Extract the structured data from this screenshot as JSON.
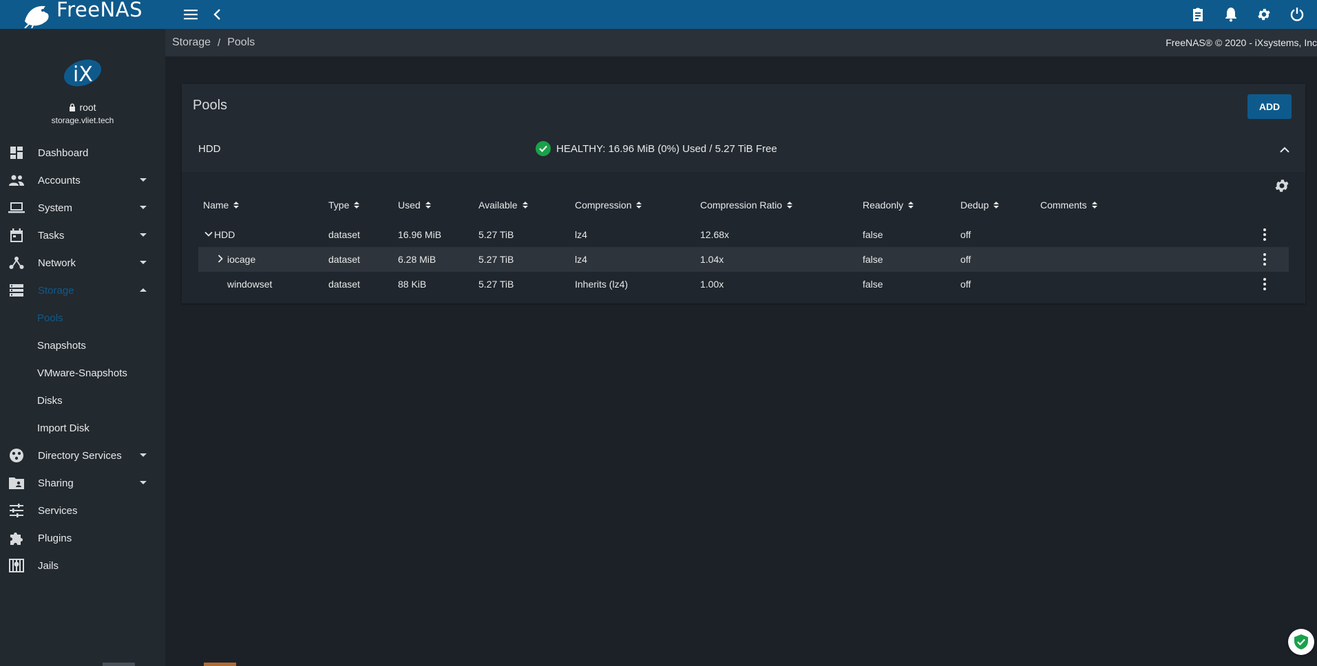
{
  "app": {
    "brand": "FreeNAS"
  },
  "topbar": {
    "menu_icon": "hamburger-icon",
    "back_icon": "chevron-left-icon",
    "right_icons": [
      "clipboard-icon",
      "bell-icon",
      "gear-icon",
      "power-icon"
    ]
  },
  "user": {
    "name": "root",
    "host": "storage.vliet.tech"
  },
  "sidebar": {
    "items": [
      {
        "label": "Dashboard",
        "icon": "dashboard-icon"
      },
      {
        "label": "Accounts",
        "icon": "people-icon"
      },
      {
        "label": "System",
        "icon": "laptop-icon"
      },
      {
        "label": "Tasks",
        "icon": "calendar-icon"
      },
      {
        "label": "Network",
        "icon": "network-icon"
      },
      {
        "label": "Storage",
        "icon": "storage-icon"
      },
      {
        "label": "Directory Services",
        "icon": "directory-icon"
      },
      {
        "label": "Sharing",
        "icon": "folder-share-icon"
      },
      {
        "label": "Services",
        "icon": "sliders-icon"
      },
      {
        "label": "Plugins",
        "icon": "puzzle-icon"
      },
      {
        "label": "Jails",
        "icon": "jail-icon"
      }
    ],
    "storage_sub": [
      "Pools",
      "Snapshots",
      "VMware-Snapshots",
      "Disks",
      "Import Disk"
    ],
    "active_item": "Storage",
    "active_sub": "Pools"
  },
  "breadcrumb": {
    "items": [
      "Storage",
      "Pools"
    ],
    "separator": "/"
  },
  "copyright": "FreeNAS® © 2020 - iXsystems, Inc",
  "card": {
    "title": "Pools",
    "add_label": "ADD",
    "pool": {
      "name": "HDD",
      "status": "HEALTHY: 16.96 MiB (0%) Used / 5.27 TiB Free",
      "status_color": "#1aa14a"
    },
    "columns": [
      "Name",
      "Type",
      "Used",
      "Available",
      "Compression",
      "Compression Ratio",
      "Readonly",
      "Dedup",
      "Comments"
    ],
    "rows": [
      {
        "name": "HDD",
        "type": "dataset",
        "used": "16.96 MiB",
        "available": "5.27 TiB",
        "compression": "lz4",
        "ratio": "12.68x",
        "readonly": "false",
        "dedup": "off",
        "comments": ""
      },
      {
        "name": "iocage",
        "type": "dataset",
        "used": "6.28 MiB",
        "available": "5.27 TiB",
        "compression": "lz4",
        "ratio": "1.04x",
        "readonly": "false",
        "dedup": "off",
        "comments": ""
      },
      {
        "name": "windowset",
        "type": "dataset",
        "used": "88 KiB",
        "available": "5.27 TiB",
        "compression": "Inherits (lz4)",
        "ratio": "1.00x",
        "readonly": "false",
        "dedup": "off",
        "comments": ""
      }
    ]
  },
  "colors": {
    "topbar": "#0f5a8c",
    "accent": "#0f5a8c",
    "sidebar": "#22292f",
    "content": "#1c2128"
  }
}
